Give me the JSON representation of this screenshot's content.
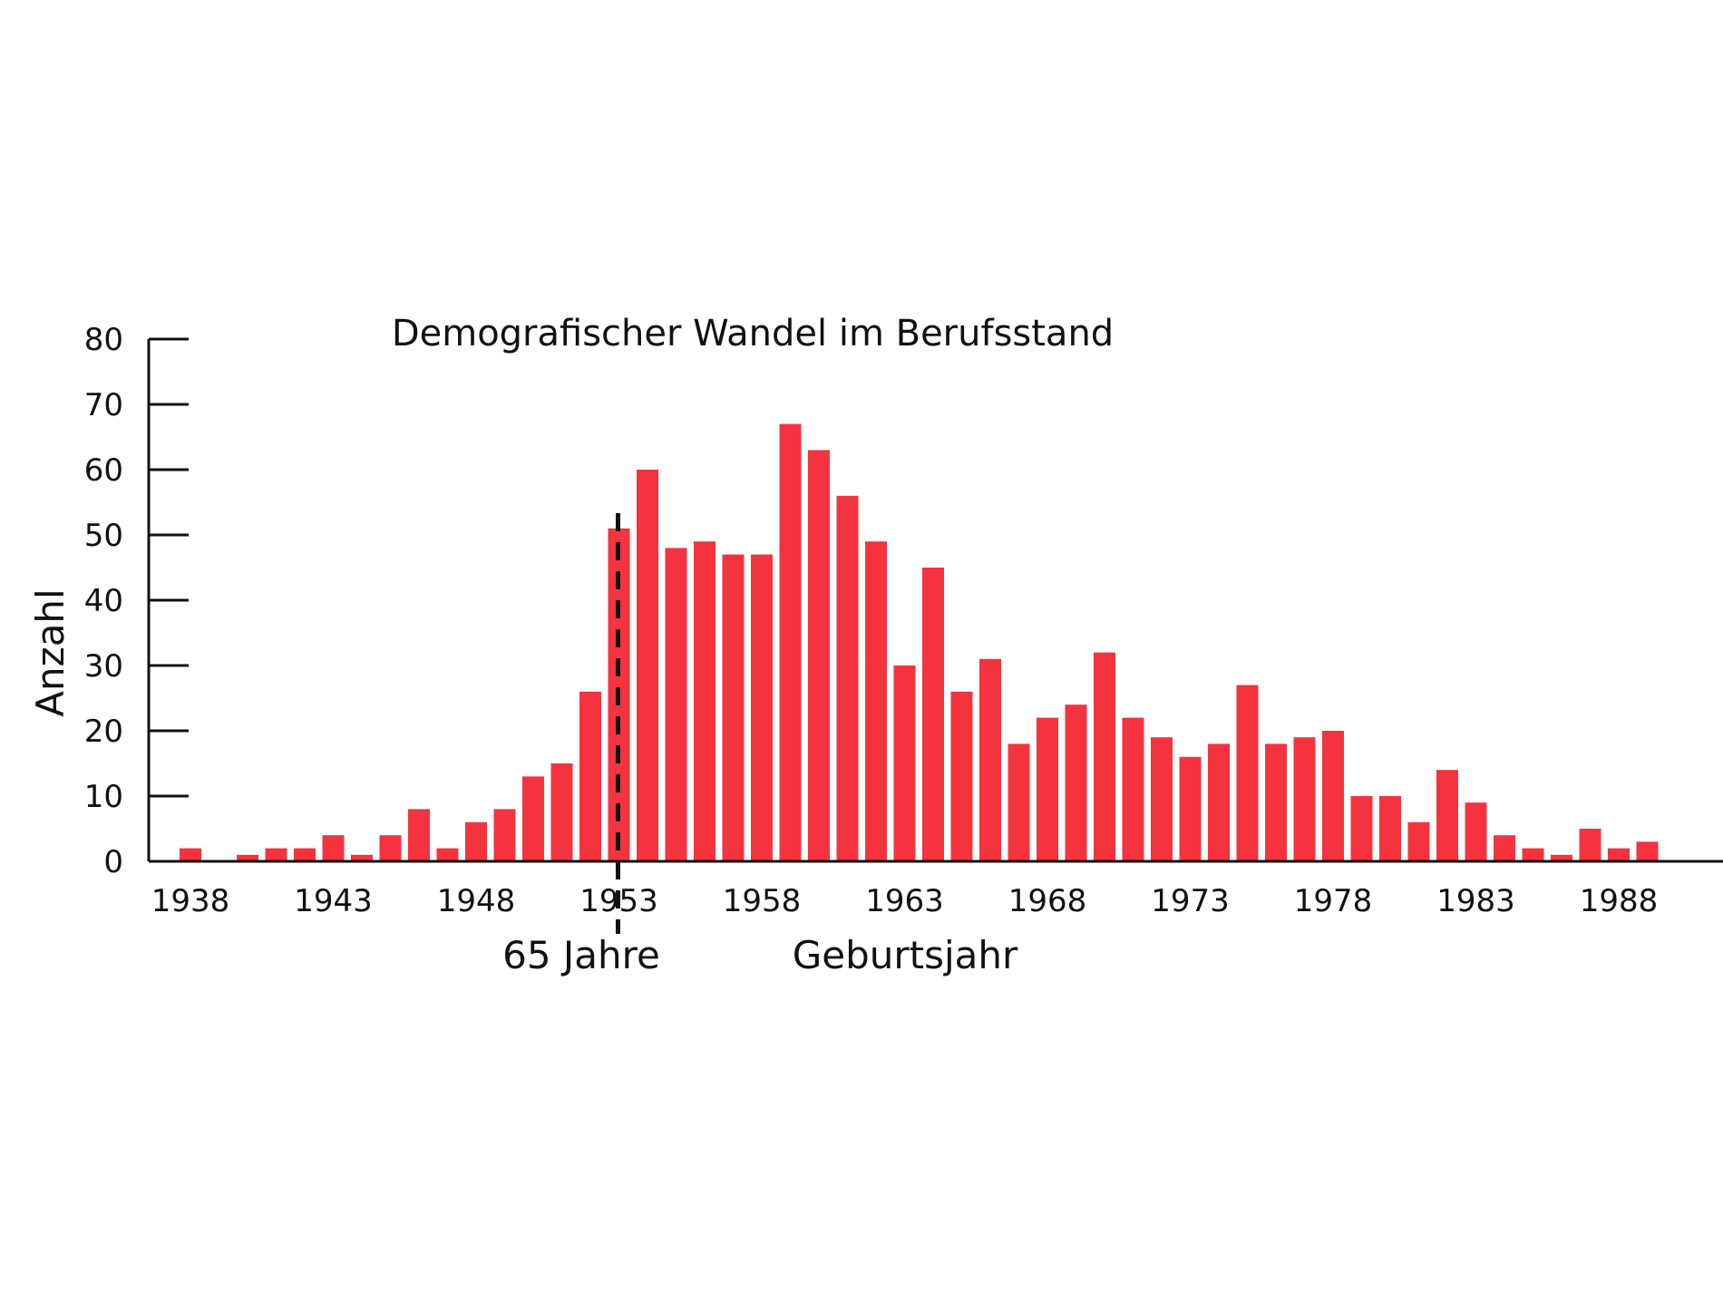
{
  "chart_data": {
    "type": "bar",
    "title": "Demografischer Wandel im Berufsstand",
    "xlabel": "Geburtsjahr",
    "ylabel": "Anzahl",
    "ylim": [
      0,
      80
    ],
    "yticks": [
      0,
      10,
      20,
      30,
      40,
      50,
      60,
      70,
      80
    ],
    "xtick_labels": [
      "1938",
      "1943",
      "1948",
      "1953",
      "1958",
      "1963",
      "1968",
      "1973",
      "1978",
      "1983",
      "1988"
    ],
    "grid": false,
    "bar_color": "#f5333f",
    "categories": [
      1938,
      1939,
      1940,
      1941,
      1942,
      1943,
      1944,
      1945,
      1946,
      1947,
      1948,
      1949,
      1950,
      1951,
      1952,
      1953,
      1954,
      1955,
      1956,
      1957,
      1958,
      1959,
      1960,
      1961,
      1962,
      1963,
      1964,
      1965,
      1966,
      1967,
      1968,
      1969,
      1970,
      1971,
      1972,
      1973,
      1974,
      1975,
      1976,
      1977,
      1978,
      1979,
      1980,
      1981,
      1982,
      1983,
      1984,
      1985,
      1986,
      1987,
      1988,
      1989
    ],
    "values": [
      2,
      0,
      1,
      2,
      2,
      4,
      1,
      4,
      8,
      2,
      6,
      8,
      13,
      15,
      26,
      51,
      60,
      48,
      49,
      47,
      47,
      67,
      63,
      56,
      49,
      30,
      45,
      26,
      31,
      18,
      22,
      24,
      32,
      22,
      19,
      16,
      18,
      27,
      18,
      19,
      20,
      10,
      10,
      6,
      14,
      9,
      4,
      2,
      1,
      5,
      2,
      3
    ],
    "annotations": [
      {
        "type": "vertical-dashed-line",
        "x": 1953,
        "label": "65 Jahre"
      }
    ]
  }
}
